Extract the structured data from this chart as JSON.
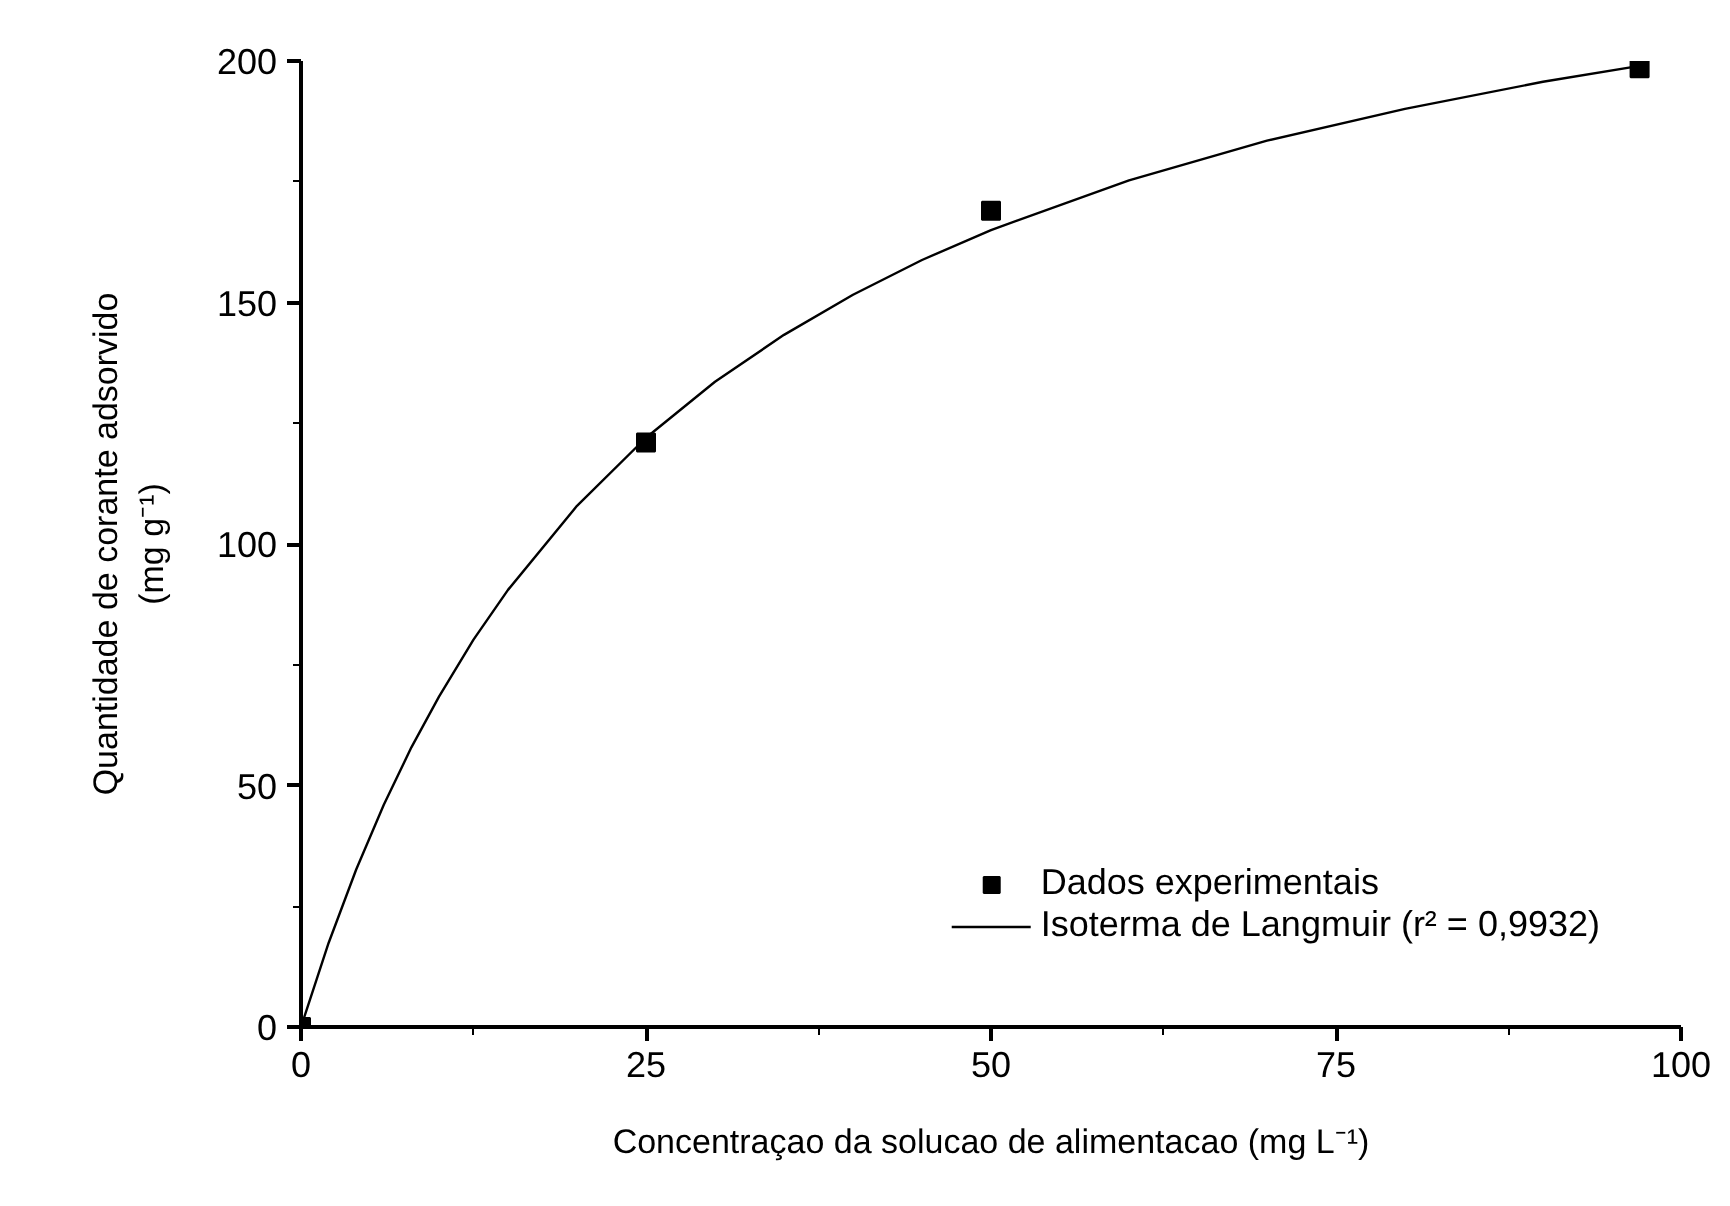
{
  "chart_data": {
    "type": "scatter",
    "xlabel": "Concentraçao da solucao de alimentacao (mg L⁻¹)",
    "ylabel": "Quantidade de corante adsorvido\n(mg g⁻¹)",
    "xlim": [
      0,
      100
    ],
    "ylim": [
      0,
      200
    ],
    "xticks": [
      0,
      25,
      50,
      75,
      100
    ],
    "yticks": [
      0,
      50,
      100,
      150,
      200
    ],
    "grid": false,
    "legend": "bottom right",
    "series": [
      {
        "name": "Dados experimentais",
        "marker": "square",
        "color": "#000000",
        "x": [
          0,
          25,
          50,
          97
        ],
        "values": [
          0,
          121,
          169,
          198.5
        ]
      },
      {
        "name": "Isoterma de Langmuir (r² = 0,9932)",
        "type": "line",
        "marker": "none",
        "line_style": "solid",
        "color": "#000000",
        "x": [
          0,
          2,
          4,
          6,
          8,
          10,
          12.5,
          15,
          20,
          25,
          30,
          35,
          40,
          45,
          50,
          60,
          70,
          80,
          90,
          97
        ],
        "values": [
          0,
          17.4,
          32.6,
          46.0,
          57.9,
          68.4,
          80.2,
          90.5,
          107.9,
          122.0,
          133.6,
          143.3,
          151.6,
          158.8,
          165.0,
          175.3,
          183.5,
          190.1,
          195.7,
          199.0
        ]
      }
    ]
  }
}
